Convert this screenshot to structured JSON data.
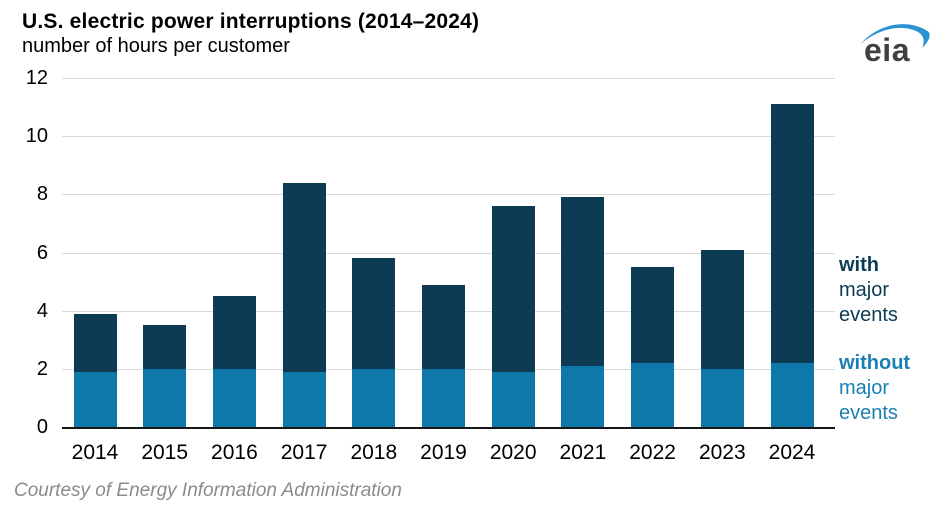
{
  "header": {
    "title": "U.S. electric power interruptions (2014–2024)",
    "subtitle": "number of hours per customer"
  },
  "logo": {
    "text": "eia",
    "swoosh_color": "#2a94d1",
    "text_color": "#3f4040"
  },
  "legend": {
    "with_events": {
      "line1": "with",
      "line2": "major",
      "line3": "events",
      "color": "#0d3b54"
    },
    "without_events": {
      "line1": "without",
      "line2": "major",
      "line3": "events",
      "color": "#1b7fb4"
    }
  },
  "footer": {
    "text": "Courtesy of Energy Information Administration"
  },
  "colors": {
    "bar_dark": "#0d3b54",
    "bar_light": "#0e78a8",
    "gridline": "#dadada",
    "axis": "#161616"
  },
  "chart_data": {
    "type": "bar",
    "stacked": true,
    "title": "U.S. electric power interruptions (2014–2024)",
    "ylabel": "number of hours per customer",
    "categories": [
      "2014",
      "2015",
      "2016",
      "2017",
      "2018",
      "2019",
      "2020",
      "2021",
      "2022",
      "2023",
      "2024"
    ],
    "series": [
      {
        "name": "without major events",
        "color": "#0e78a8",
        "values": [
          1.9,
          2.0,
          2.0,
          1.9,
          2.0,
          2.0,
          1.9,
          2.1,
          2.2,
          2.0,
          2.2
        ]
      },
      {
        "name": "with major events (major-event portion)",
        "color": "#0d3b54",
        "values": [
          2.0,
          1.5,
          2.5,
          6.5,
          3.8,
          2.9,
          5.7,
          5.8,
          3.3,
          4.1,
          8.9
        ]
      }
    ],
    "totals": [
      3.9,
      3.5,
      4.5,
      8.4,
      5.8,
      4.9,
      7.6,
      7.9,
      5.5,
      6.1,
      11.1
    ],
    "ylim": [
      0,
      12
    ],
    "yticks": [
      0,
      2,
      4,
      6,
      8,
      10,
      12
    ],
    "grid": true,
    "legend_position": "right"
  }
}
